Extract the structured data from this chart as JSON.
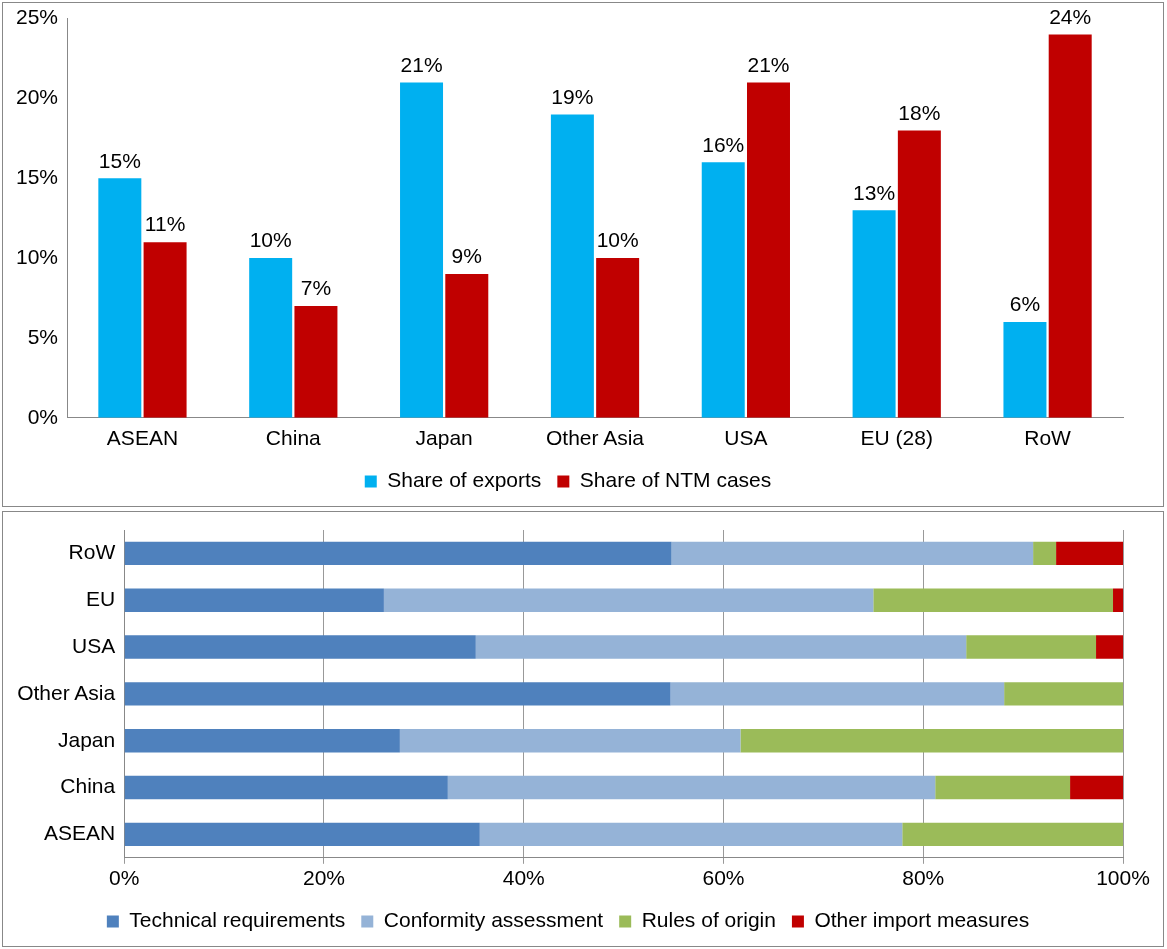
{
  "chart_data": [
    {
      "type": "bar",
      "categories": [
        "ASEAN",
        "China",
        "Japan",
        "Other Asia",
        "USA",
        "EU (28)",
        "RoW"
      ],
      "series": [
        {
          "name": "Share of exports",
          "color": "#00b0f0",
          "values": [
            15,
            10,
            21,
            19,
            16,
            13,
            6
          ],
          "value_labels": [
            "15%",
            "10%",
            "21%",
            "19%",
            "16%",
            "13%",
            "6%"
          ]
        },
        {
          "name": "Share of NTM cases",
          "color": "#c00000",
          "values": [
            11,
            7,
            9,
            10,
            21,
            18,
            24
          ],
          "value_labels": [
            "11%",
            "7%",
            "9%",
            "10%",
            "21%",
            "18%",
            "24%"
          ]
        }
      ],
      "ylim": [
        0,
        25
      ],
      "yticks": [
        {
          "value": 0,
          "label": "0%"
        },
        {
          "value": 5,
          "label": "5%"
        },
        {
          "value": 10,
          "label": "10%"
        },
        {
          "value": 15,
          "label": "15%"
        },
        {
          "value": 20,
          "label": "20%"
        },
        {
          "value": 25,
          "label": "25%"
        }
      ],
      "grid": false,
      "legend": "bottom"
    },
    {
      "type": "bar",
      "orientation": "horizontal",
      "stacked": true,
      "categories": [
        "RoW",
        "EU",
        "USA",
        "Other Asia",
        "Japan",
        "China",
        "ASEAN"
      ],
      "series": [
        {
          "name": "Technical requirements",
          "color": "#4f81bd",
          "values": [
            54.8,
            26.0,
            35.2,
            54.7,
            27.6,
            32.4,
            35.6
          ]
        },
        {
          "name": "Conformity assessment",
          "color": "#95b3d7",
          "values": [
            36.2,
            49.0,
            49.1,
            33.4,
            34.1,
            48.8,
            42.3
          ]
        },
        {
          "name": "Rules of origin",
          "color": "#9bbb59",
          "values": [
            2.3,
            24.0,
            13.0,
            11.9,
            38.3,
            13.5,
            22.1
          ]
        },
        {
          "name": "Other import measures",
          "color": "#c00000",
          "values": [
            6.7,
            1.0,
            2.7,
            0,
            0,
            5.3,
            0
          ]
        }
      ],
      "xlim": [
        0,
        100
      ],
      "xticks": [
        {
          "value": 0,
          "label": "0%"
        },
        {
          "value": 20,
          "label": "20%"
        },
        {
          "value": 40,
          "label": "40%"
        },
        {
          "value": 60,
          "label": "60%"
        },
        {
          "value": 80,
          "label": "80%"
        },
        {
          "value": 100,
          "label": "100%"
        }
      ],
      "grid": "x",
      "legend": "bottom"
    }
  ]
}
